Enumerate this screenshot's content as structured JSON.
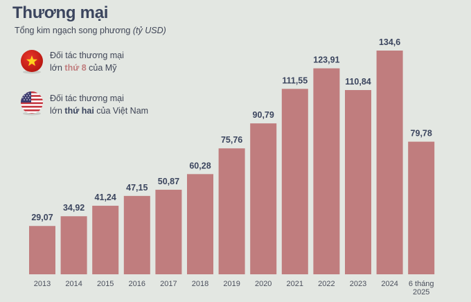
{
  "header": {
    "title": "Thương mại",
    "subtitle": "Tổng kim ngạch song phương",
    "unit": "(tỷ USD)"
  },
  "notes": [
    {
      "flag_icon": "vietnam-flag-icon",
      "line1": "Đối tác thương mại",
      "prefix": "lớn ",
      "highlight": "thứ 8",
      "suffix": " của Mỹ",
      "highlight_color": "#c07d7e"
    },
    {
      "flag_icon": "usa-flag-icon",
      "line1": "Đối tác thương mại",
      "prefix": "lớn ",
      "highlight": "thứ hai",
      "suffix": " của Việt Nam",
      "highlight_color": "#3b455e"
    }
  ],
  "colors": {
    "background": "#e3e7e2",
    "bar": "#c07d7e",
    "title": "#3b455e",
    "label": "#3b455e",
    "tick": "#4a4f5c"
  },
  "chart_data": {
    "type": "bar",
    "title": "Thương mại",
    "subtitle": "Tổng kim ngạch song phương (tỷ USD)",
    "xlabel": "",
    "ylabel": "tỷ USD",
    "categories": [
      "2013",
      "2014",
      "2015",
      "2016",
      "2017",
      "2018",
      "2019",
      "2020",
      "2021",
      "2022",
      "2023",
      "2024",
      "6 tháng 2025"
    ],
    "category_lines": [
      [
        "2013"
      ],
      [
        "2014"
      ],
      [
        "2015"
      ],
      [
        "2016"
      ],
      [
        "2017"
      ],
      [
        "2018"
      ],
      [
        "2019"
      ],
      [
        "2020"
      ],
      [
        "2021"
      ],
      [
        "2022"
      ],
      [
        "2023"
      ],
      [
        "2024"
      ],
      [
        "6 tháng",
        "2025"
      ]
    ],
    "values": [
      29.07,
      34.92,
      41.24,
      47.15,
      50.87,
      60.28,
      75.76,
      90.79,
      111.55,
      123.91,
      110.84,
      134.6,
      79.78
    ],
    "value_labels": [
      "29,07",
      "34,92",
      "41,24",
      "47,15",
      "50,87",
      "60,28",
      "75,76",
      "90,79",
      "111,55",
      "123,91",
      "110,84",
      "134,6",
      "79,78"
    ],
    "ylim": [
      0,
      134.6
    ],
    "grid": false,
    "legend": "none"
  }
}
